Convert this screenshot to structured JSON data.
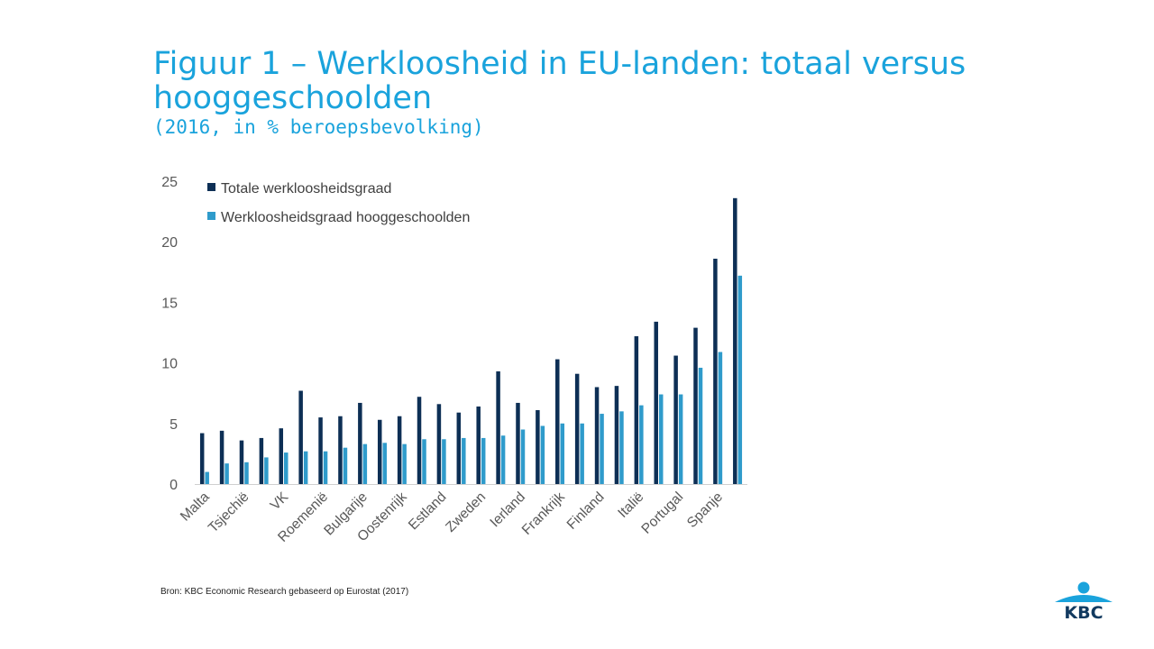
{
  "header": {
    "title": "Figuur 1 – Werkloosheid in EU-landen: totaal versus hooggeschoolden",
    "subtitle": "(2016, in % beroepsbevolking)"
  },
  "source": "Bron: KBC Economic Research gebaseerd op Eurostat (2017)",
  "logo": {
    "text": "KBC",
    "colors": {
      "navy": "#123a60",
      "sky": "#1aa3dc"
    }
  },
  "chart_data": {
    "type": "bar",
    "title": "",
    "xlabel": "",
    "ylabel": "",
    "ylim": [
      0,
      25
    ],
    "yticks": [
      0,
      5,
      10,
      15,
      20,
      25
    ],
    "grid": false,
    "legend_position": "top-left",
    "categories": [
      "Malta",
      "",
      "Tsjechië",
      "",
      "VK",
      "",
      "Roemenië",
      "",
      "Bulgarije",
      "",
      "Oostenrijk",
      "",
      "Estland",
      "",
      "Zweden",
      "",
      "Ierland",
      "",
      "Frankrijk",
      "",
      "Finland",
      "",
      "Italië",
      "",
      "Portugal",
      "",
      "Spanje",
      ""
    ],
    "series": [
      {
        "name": "Totale werkloosheidsgraad",
        "color": "#0d2f55",
        "values": [
          4.2,
          4.4,
          3.6,
          3.8,
          4.6,
          7.7,
          5.5,
          5.6,
          6.7,
          5.3,
          5.6,
          7.2,
          6.6,
          5.9,
          6.4,
          9.3,
          6.7,
          6.1,
          10.3,
          9.1,
          8.0,
          8.1,
          12.2,
          13.4,
          10.6,
          12.9,
          18.6,
          23.6
        ]
      },
      {
        "name": "Werkloosheidsgraad hooggeschoolden",
        "color": "#2f9bcb",
        "values": [
          1.0,
          1.7,
          1.8,
          2.2,
          2.6,
          2.7,
          2.7,
          3.0,
          3.3,
          3.4,
          3.3,
          3.7,
          3.7,
          3.8,
          3.8,
          4.0,
          4.5,
          4.8,
          5.0,
          5.0,
          5.8,
          6.0,
          6.5,
          7.4,
          7.4,
          9.6,
          10.9,
          17.2
        ]
      }
    ]
  }
}
